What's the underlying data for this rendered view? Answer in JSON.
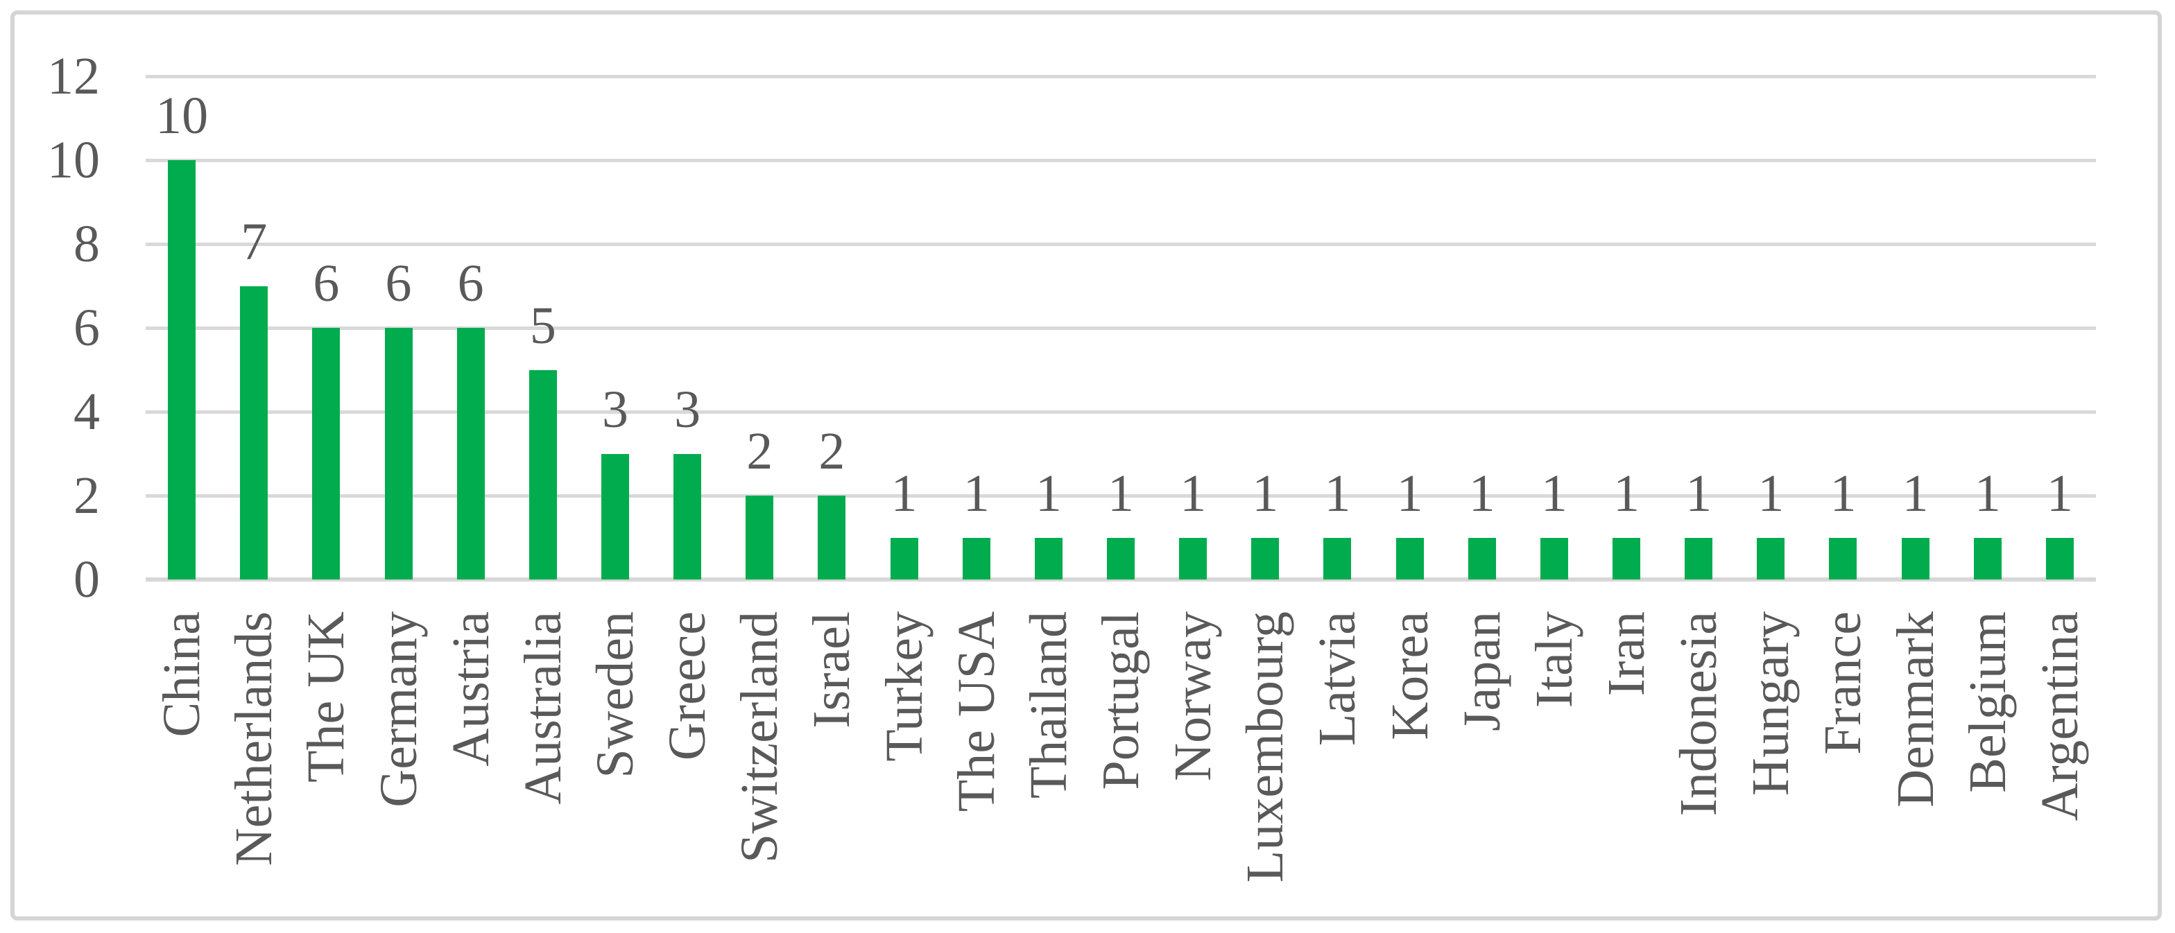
{
  "chart_data": {
    "type": "bar",
    "title": "",
    "xlabel": "",
    "ylabel": "",
    "categories": [
      "China",
      "Netherlands",
      "The UK",
      "Germany",
      "Austria",
      "Australia",
      "Sweden",
      "Greece",
      "Switzerland",
      "Israel",
      "Turkey",
      "The USA",
      "Thailand",
      "Portugal",
      "Norway",
      "Luxembourg",
      "Latvia",
      "Korea",
      "Japan",
      "Italy",
      "Iran",
      "Indonesia",
      "Hungary",
      "France",
      "Denmark",
      "Belgium",
      "Argentina"
    ],
    "values": [
      10,
      7,
      6,
      6,
      6,
      5,
      3,
      3,
      2,
      2,
      1,
      1,
      1,
      1,
      1,
      1,
      1,
      1,
      1,
      1,
      1,
      1,
      1,
      1,
      1,
      1,
      1
    ],
    "ylim": [
      0,
      12
    ],
    "yticks": [
      0,
      2,
      4,
      6,
      8,
      10,
      12
    ],
    "grid": true,
    "legend_position": "none",
    "data_labels": true,
    "x_label_rotation_degrees": 90,
    "colors": {
      "bar": "#00AC4E",
      "gridline": "#D9D9D9",
      "axis_line": "#D7D7D7",
      "text": "#595959",
      "frame_border": "#D5D5D5",
      "background": "#FFFFFF"
    }
  }
}
